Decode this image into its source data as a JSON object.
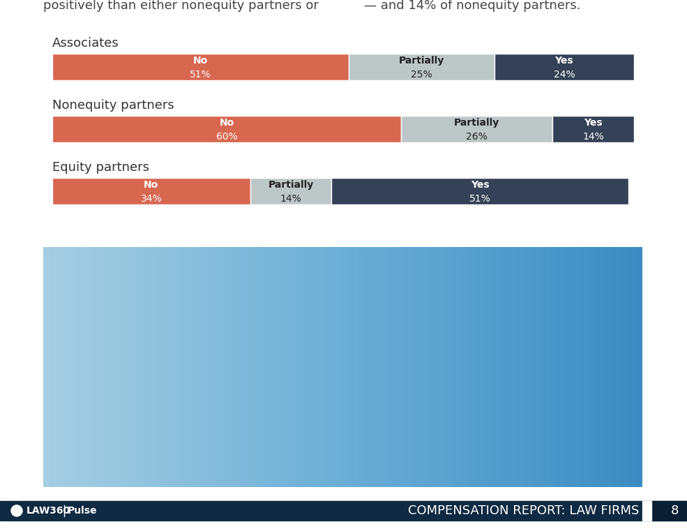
{
  "page": {
    "header_left": "positively than either nonequity partners or",
    "header_right": "— and 14% of nonequity partners.",
    "brand": "LAW360",
    "brand_sub": "Pulse",
    "report_title": "COMPENSATION REPORT: LAW FIRMS",
    "page_number": "8"
  },
  "chart_data": {
    "type": "bar",
    "orientation": "horizontal",
    "stacked": true,
    "data_labels": true,
    "tick_labels": false,
    "categories": [
      "Associates",
      "Nonequity partners",
      "Equity partners"
    ],
    "xlim": [
      0,
      100
    ],
    "xticks": [],
    "series": [
      {
        "name": "No",
        "color": "#d86750",
        "values": [
          51,
          60,
          34
        ],
        "value_labels": [
          "51%",
          "60%",
          "34%"
        ]
      },
      {
        "name": "Partially",
        "color": "#bec7c8",
        "values": [
          25,
          26,
          14
        ],
        "value_labels": [
          "25%",
          "26%",
          "14%"
        ]
      },
      {
        "name": "Yes",
        "color": "#344156",
        "values": [
          24,
          14,
          51
        ],
        "value_labels": [
          "24%",
          "14%",
          "51%"
        ]
      }
    ]
  }
}
